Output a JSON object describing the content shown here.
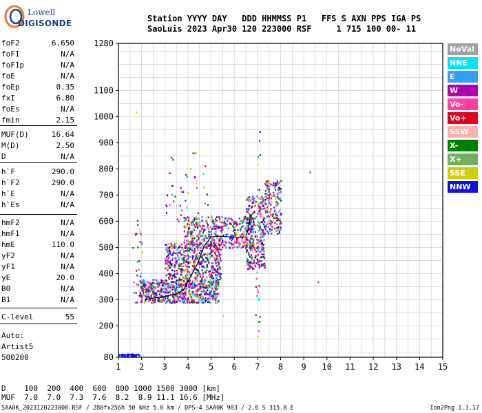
{
  "logo": {
    "line1": "Lowell",
    "line2": "DIGISONDE"
  },
  "header": {
    "line1": "Station YYYY DAY   DDD HHMMSS P1   FFS S AXN PPS IGA PS",
    "line2": "SaoLuis 2023 Apr30 120 223000 RSF     1 715 100 00- 11"
  },
  "params": [
    {
      "label": "foF2",
      "value": "6.650"
    },
    {
      "label": "foF1",
      "value": "N/A"
    },
    {
      "label": "foF1p",
      "value": "N/A"
    },
    {
      "label": "foE",
      "value": "N/A"
    },
    {
      "label": "foEp",
      "value": "0.35"
    },
    {
      "label": "fxI",
      "value": "6.80"
    },
    {
      "label": "foEs",
      "value": "N/A"
    },
    {
      "label": "fmin",
      "value": "2.15"
    },
    {
      "label": "MUF(D)",
      "value": "16.64"
    },
    {
      "label": "M(D)",
      "value": "2.50"
    },
    {
      "label": "D",
      "value": "N/A"
    },
    {
      "label": "h`F",
      "value": "290.0"
    },
    {
      "label": "h`F2",
      "value": "290.0"
    },
    {
      "label": "h`E",
      "value": "N/A"
    },
    {
      "label": "h`Es",
      "value": "N/A"
    },
    {
      "label": "hmF2",
      "value": "N/A"
    },
    {
      "label": "hmF1",
      "value": "N/A"
    },
    {
      "label": "hmE",
      "value": "110.0"
    },
    {
      "label": "yF2",
      "value": "N/A"
    },
    {
      "label": "yF1",
      "value": "N/A"
    },
    {
      "label": "yE",
      "value": "20.0"
    },
    {
      "label": "B0",
      "value": "N/A"
    },
    {
      "label": "B1",
      "value": "N/A"
    },
    {
      "label": "C-level",
      "value": "55"
    }
  ],
  "autoscale": {
    "line1": "Auto:",
    "line2": "Artist5",
    "line3": "500200"
  },
  "legend": [
    {
      "label": "NoVal",
      "color": "#a0a0a0"
    },
    {
      "label": "NNE",
      "color": "#00e5ff"
    },
    {
      "label": "E",
      "color": "#33a0ff"
    },
    {
      "label": "W",
      "color": "#b000b0"
    },
    {
      "label": "Vo-",
      "color": "#ff40a0"
    },
    {
      "label": "Vo+",
      "color": "#e00020"
    },
    {
      "label": "SSW",
      "color": "#ffb0b0"
    },
    {
      "label": "X-",
      "color": "#008000"
    },
    {
      "label": "X+",
      "color": "#70b060"
    },
    {
      "label": "SSE",
      "color": "#d0d000"
    },
    {
      "label": "NNW",
      "color": "#1010e0"
    }
  ],
  "dist_table": {
    "row1": "D    100  200  400  600  800 1000 1500 3000 [km]",
    "row2": "MUF  7.0  7.0  7.3  7.6  8.2  8.9 11.1 16.6 [MHz]"
  },
  "footer": "SAA0K_2023120223000.RSF / 280fx256h 50 kHz 5.0 km / DPS-4 SAA0K 903 / 2.6 S 315.8 E",
  "version": "Ion2Png 1.3.17",
  "chart_data": {
    "type": "scatter",
    "title": "",
    "xlabel": "",
    "ylabel": "",
    "xlim": [
      1,
      15
    ],
    "ylim": [
      80,
      1280
    ],
    "x_ticks": [
      1,
      2,
      3,
      4,
      5,
      6,
      7,
      8,
      9,
      10,
      11,
      12,
      13,
      14,
      15
    ],
    "y_ticks": [
      80,
      200,
      300,
      400,
      500,
      600,
      700,
      800,
      900,
      1000,
      1100,
      1280
    ],
    "grid": true,
    "trace": {
      "name": "",
      "x": [
        2.15,
        2.5,
        3.0,
        3.5,
        3.8,
        4.0,
        4.4,
        4.7,
        5.0,
        5.4,
        5.8,
        6.2,
        6.5,
        6.6,
        6.7,
        6.9
      ],
      "y": [
        300,
        306,
        312,
        322,
        336,
        370,
        435,
        505,
        540,
        543,
        540,
        537,
        540,
        570,
        620,
        640
      ]
    },
    "e_trace": {
      "x": [
        1.0,
        1.9
      ],
      "y": [
        90,
        90
      ]
    },
    "echo_regions": [
      {
        "x_range": [
          1.0,
          1.9
        ],
        "y_range": [
          85,
          95
        ],
        "count": 40
      },
      {
        "x_range": [
          1.6,
          2.0
        ],
        "y_range": [
          290,
          620
        ],
        "count": 30
      },
      {
        "x_range": [
          1.9,
          5.3
        ],
        "y_range": [
          290,
          380
        ],
        "count": 700
      },
      {
        "x_range": [
          3.0,
          5.4
        ],
        "y_range": [
          380,
          520
        ],
        "count": 500
      },
      {
        "x_range": [
          3.8,
          6.8
        ],
        "y_range": [
          500,
          620
        ],
        "count": 450
      },
      {
        "x_range": [
          6.5,
          7.3
        ],
        "y_range": [
          420,
          700
        ],
        "count": 300
      },
      {
        "x_range": [
          7.3,
          8.0
        ],
        "y_range": [
          550,
          760
        ],
        "count": 180
      },
      {
        "x_range": [
          3.0,
          5.0
        ],
        "y_range": [
          600,
          880
        ],
        "count": 45
      },
      {
        "x_range": [
          6.9,
          7.1
        ],
        "y_range": [
          160,
          980
        ],
        "count": 25
      }
    ]
  }
}
